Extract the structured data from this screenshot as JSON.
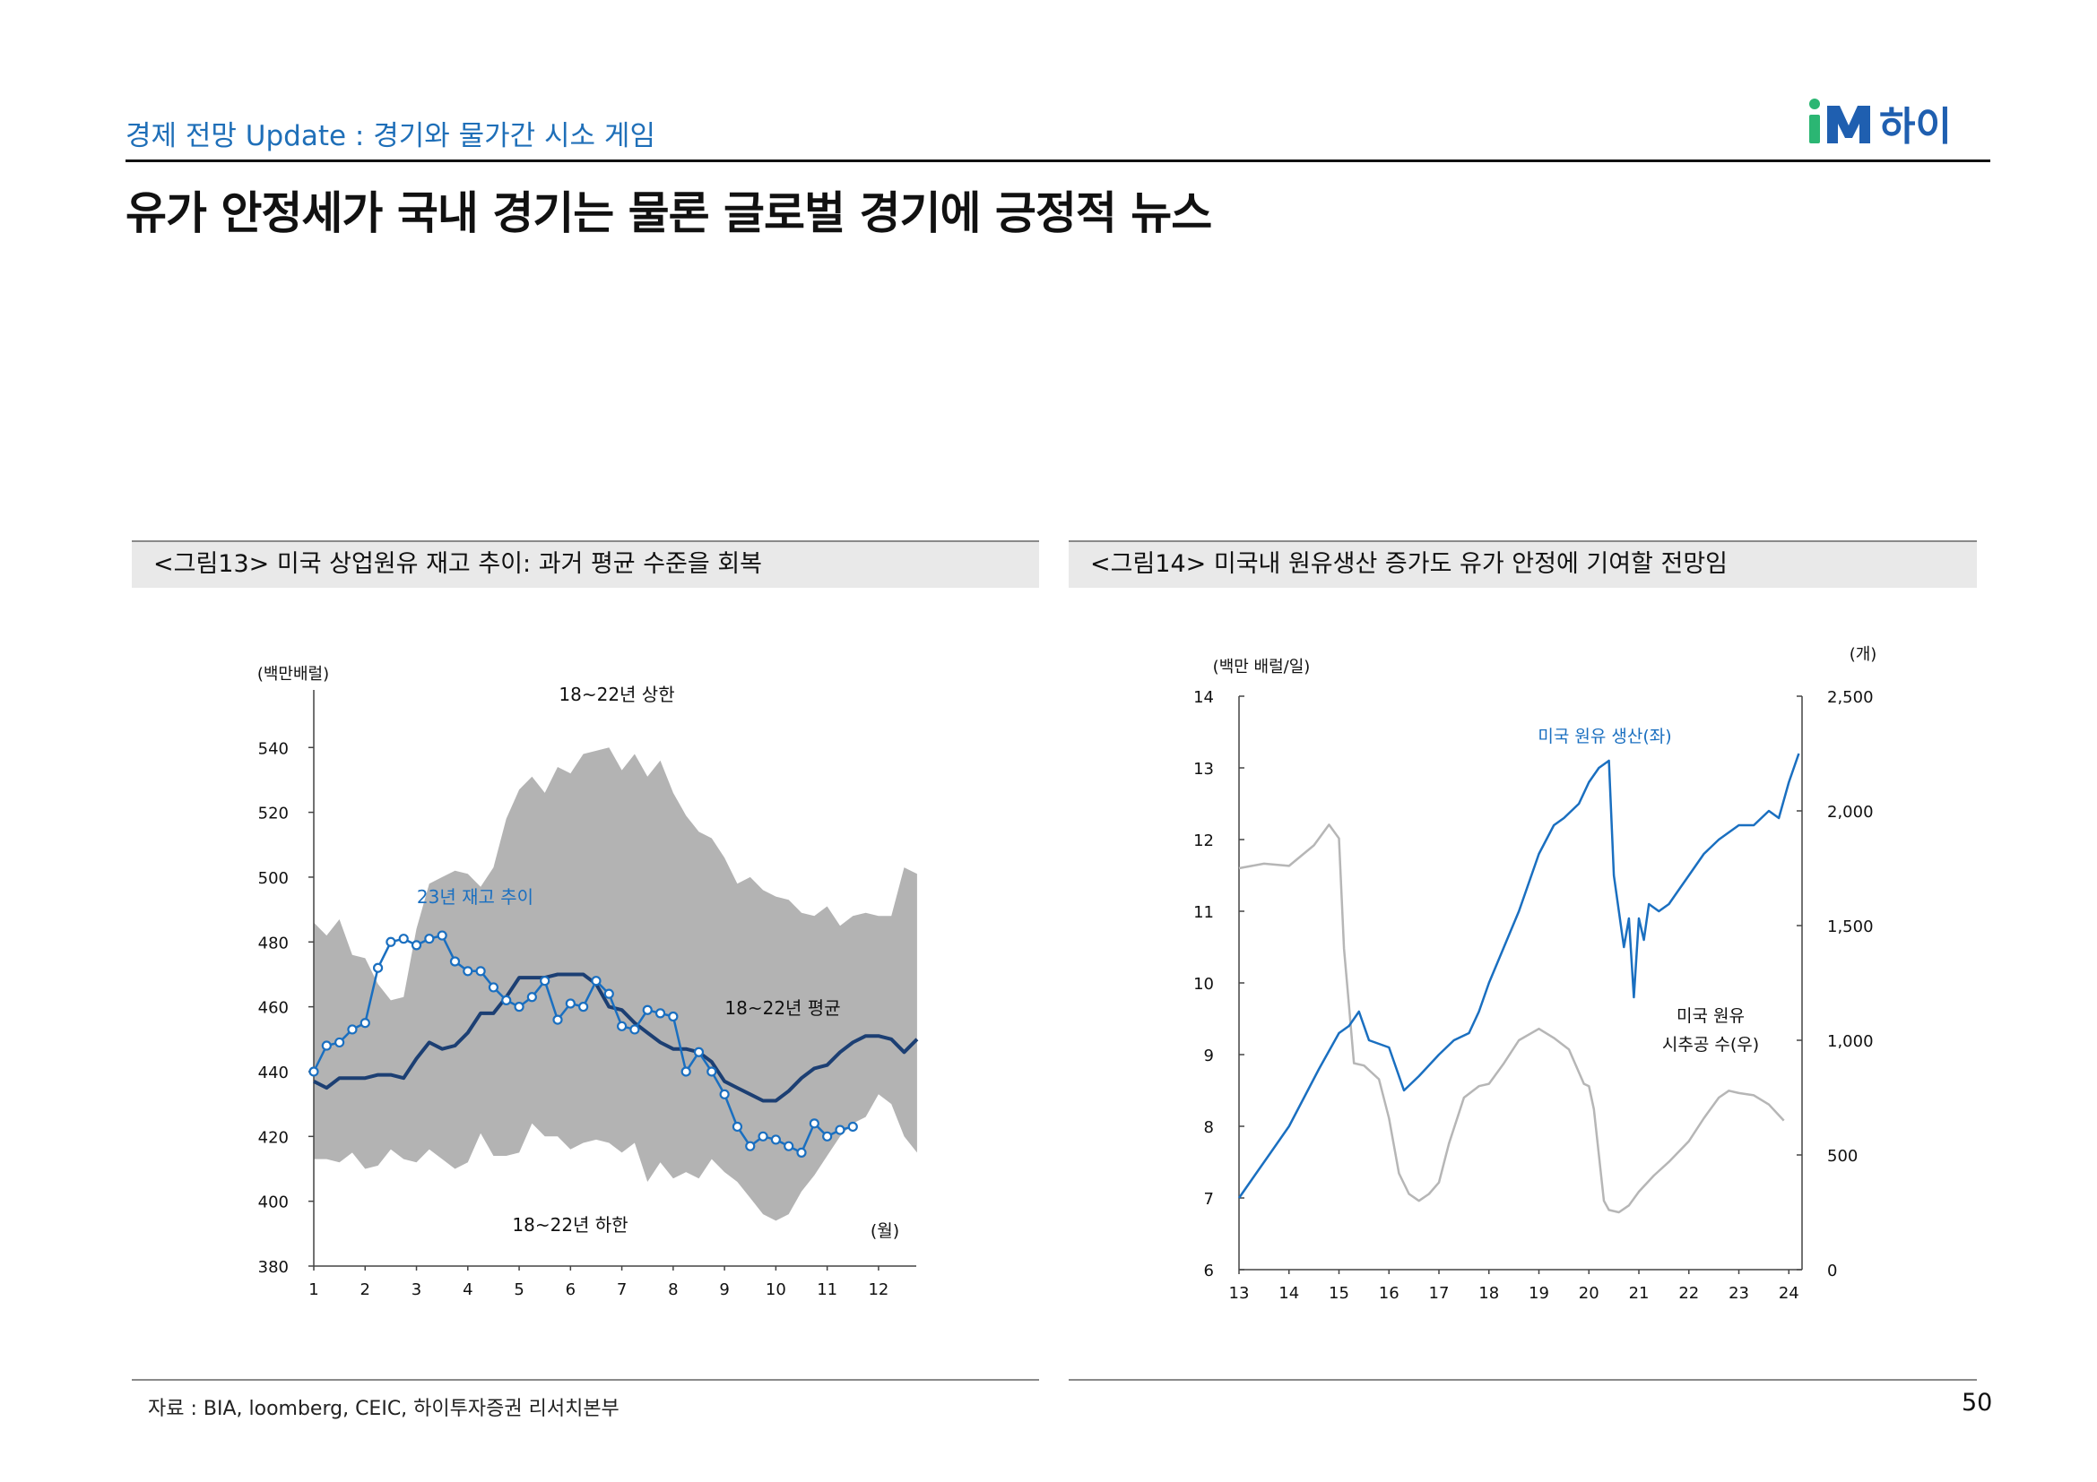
{
  "header": {
    "subtitle": "경제 전망 Update : 경기와 물가간 시소 게임",
    "title": "유가 안정세가 국내 경기는 물론 글로벌 경기에 긍정적 뉴스",
    "logo_im": "iM",
    "logo_text": "하이"
  },
  "colors": {
    "accent_blue": "#1a6fc0",
    "navy": "#1c3f73",
    "band_gray": "#b3b3b3",
    "rig_gray": "#b6b6b6",
    "logo_green": "#2bb673",
    "logo_blue": "#1f5fb0"
  },
  "figures": [
    {
      "caption": "<그림13> 미국 상업원유 재고 추이: 과거 평균 수준을 회복"
    },
    {
      "caption": "<그림14> 미국내 원유생산 증가도 유가 안정에 기여할 전망임"
    }
  ],
  "footer": {
    "source": "자료 : BIA, loomberg, CEIC, 하이투자증권 리서치본부",
    "page": "50"
  },
  "chart_data": [
    {
      "type": "line",
      "title": "",
      "ylabel": "(백만배럴)",
      "xlabel": "(월)",
      "ylim": [
        380,
        555
      ],
      "xlim": [
        1,
        12.7
      ],
      "yticks": [
        380,
        400,
        420,
        440,
        460,
        480,
        500,
        520,
        540
      ],
      "xticks": [
        1,
        2,
        3,
        4,
        5,
        6,
        7,
        8,
        9,
        10,
        11,
        12
      ],
      "annotations": [
        "18~22년 상한",
        "18~22년 하한",
        "23년 재고 추이",
        "18~22년 평균"
      ],
      "band": {
        "name": "18~22년 상한 / 18~22년 하한",
        "x": [
          1,
          1.25,
          1.5,
          1.75,
          2,
          2.25,
          2.5,
          2.75,
          3,
          3.25,
          3.5,
          3.75,
          4,
          4.25,
          4.5,
          4.75,
          5,
          5.25,
          5.5,
          5.75,
          6,
          6.25,
          6.5,
          6.75,
          7,
          7.25,
          7.5,
          7.75,
          8,
          8.25,
          8.5,
          8.75,
          9,
          9.25,
          9.5,
          9.75,
          10,
          10.25,
          10.5,
          10.75,
          11,
          11.25,
          11.5,
          11.75,
          12,
          12.25,
          12.5,
          12.75
        ],
        "upper": [
          486,
          482,
          487,
          476,
          475,
          467,
          462,
          463,
          484,
          498,
          500,
          502,
          501,
          497,
          503,
          518,
          527,
          531,
          526,
          534,
          532,
          538,
          539,
          540,
          533,
          538,
          531,
          536,
          526,
          519,
          514,
          512,
          506,
          498,
          500,
          496,
          494,
          493,
          489,
          488,
          491,
          485,
          488,
          489,
          488,
          488,
          503,
          501
        ],
        "lower": [
          413,
          413,
          412,
          415,
          410,
          411,
          416,
          413,
          412,
          416,
          413,
          410,
          412,
          421,
          414,
          414,
          415,
          424,
          420,
          420,
          416,
          418,
          419,
          418,
          415,
          418,
          406,
          412,
          407,
          409,
          407,
          413,
          409,
          406,
          401,
          396,
          394,
          396,
          403,
          408,
          414,
          420,
          424,
          426,
          433,
          430,
          420,
          415
        ]
      },
      "series": [
        {
          "name": "18~22년 평균",
          "x": [
            1,
            1.25,
            1.5,
            1.75,
            2,
            2.25,
            2.5,
            2.75,
            3,
            3.25,
            3.5,
            3.75,
            4,
            4.25,
            4.5,
            4.75,
            5,
            5.25,
            5.5,
            5.75,
            6,
            6.25,
            6.5,
            6.75,
            7,
            7.25,
            7.5,
            7.75,
            8,
            8.25,
            8.5,
            8.75,
            9,
            9.25,
            9.5,
            9.75,
            10,
            10.25,
            10.5,
            10.75,
            11,
            11.25,
            11.5,
            11.75,
            12,
            12.25,
            12.5,
            12.75
          ],
          "values": [
            437,
            435,
            438,
            438,
            438,
            439,
            439,
            438,
            444,
            449,
            447,
            448,
            452,
            458,
            458,
            463,
            469,
            469,
            469,
            470,
            470,
            470,
            467,
            460,
            459,
            455,
            452,
            449,
            447,
            447,
            446,
            443,
            437,
            435,
            433,
            431,
            431,
            434,
            438,
            441,
            442,
            446,
            449,
            451,
            451,
            450,
            446,
            450
          ]
        },
        {
          "name": "23년 재고 추이",
          "x": [
            1,
            1.25,
            1.5,
            1.75,
            2,
            2.25,
            2.5,
            2.75,
            3,
            3.25,
            3.5,
            3.75,
            4,
            4.25,
            4.5,
            4.75,
            5,
            5.25,
            5.5,
            5.75,
            6,
            6.25,
            6.5,
            6.75,
            7,
            7.25,
            7.5,
            7.75,
            8,
            8.25,
            8.5,
            8.75,
            9,
            9.25,
            9.5,
            9.75,
            10,
            10.25,
            10.5,
            10.75,
            11,
            11.25,
            11.5
          ],
          "values": [
            440,
            448,
            449,
            453,
            455,
            472,
            480,
            481,
            479,
            481,
            482,
            474,
            471,
            471,
            466,
            462,
            460,
            463,
            468,
            456,
            461,
            460,
            468,
            464,
            454,
            453,
            459,
            458,
            457,
            440,
            446,
            440,
            433,
            423,
            417,
            420,
            419,
            417,
            415,
            424,
            420,
            422,
            423
          ]
        }
      ]
    },
    {
      "type": "line",
      "title": "",
      "ylabel": "(백만 배럴/일)",
      "y2label": "(개)",
      "ylim": [
        6,
        14
      ],
      "y2lim": [
        0,
        2500
      ],
      "xlim": [
        13,
        24.3
      ],
      "yticks": [
        6,
        7,
        8,
        9,
        10,
        11,
        12,
        13,
        14
      ],
      "y2ticks": [
        "0",
        "500",
        "1,000",
        "1,500",
        "2,000",
        "2,500"
      ],
      "xticks": [
        13,
        14,
        15,
        16,
        17,
        18,
        19,
        20,
        21,
        22,
        23,
        24
      ],
      "series": [
        {
          "name": "미국 원유 생산(좌)",
          "axis": "left",
          "x": [
            13.0,
            13.3,
            13.6,
            14.0,
            14.3,
            14.6,
            15.0,
            15.2,
            15.4,
            15.6,
            16.0,
            16.3,
            16.6,
            17.0,
            17.3,
            17.6,
            17.8,
            18.0,
            18.3,
            18.6,
            19.0,
            19.3,
            19.5,
            19.8,
            20.0,
            20.2,
            20.4,
            20.5,
            20.7,
            20.8,
            20.9,
            21.0,
            21.1,
            21.2,
            21.4,
            21.6,
            21.8,
            22.0,
            22.3,
            22.6,
            23.0,
            23.3,
            23.6,
            23.8,
            24.0,
            24.2
          ],
          "values": [
            7.0,
            7.3,
            7.6,
            8.0,
            8.4,
            8.8,
            9.3,
            9.4,
            9.6,
            9.2,
            9.1,
            8.5,
            8.7,
            9.0,
            9.2,
            9.3,
            9.6,
            10.0,
            10.5,
            11.0,
            11.8,
            12.2,
            12.3,
            12.5,
            12.8,
            13.0,
            13.1,
            11.5,
            10.5,
            10.9,
            9.8,
            10.9,
            10.6,
            11.1,
            11.0,
            11.1,
            11.3,
            11.5,
            11.8,
            12.0,
            12.2,
            12.2,
            12.4,
            12.3,
            12.8,
            13.2
          ]
        },
        {
          "name": "미국 원유 시추공 수(우)",
          "axis": "right",
          "x": [
            13.0,
            13.5,
            14.0,
            14.5,
            14.8,
            15.0,
            15.1,
            15.2,
            15.3,
            15.5,
            15.8,
            16.0,
            16.2,
            16.4,
            16.6,
            16.8,
            17.0,
            17.2,
            17.5,
            17.8,
            18.0,
            18.3,
            18.6,
            19.0,
            19.3,
            19.6,
            19.9,
            20.0,
            20.1,
            20.2,
            20.3,
            20.4,
            20.6,
            20.8,
            21.0,
            21.3,
            21.6,
            22.0,
            22.3,
            22.6,
            22.8,
            23.0,
            23.3,
            23.6,
            23.9
          ],
          "values": [
            1750,
            1770,
            1760,
            1850,
            1940,
            1880,
            1400,
            1150,
            900,
            890,
            830,
            660,
            420,
            330,
            300,
            330,
            380,
            550,
            750,
            800,
            810,
            900,
            1000,
            1050,
            1010,
            960,
            810,
            800,
            700,
            500,
            300,
            260,
            250,
            280,
            340,
            410,
            470,
            560,
            660,
            750,
            780,
            770,
            760,
            720,
            650
          ]
        }
      ],
      "annotations": [
        "미국 원유 생산(좌)",
        "미국 원유 시추공 수(우)"
      ]
    }
  ]
}
